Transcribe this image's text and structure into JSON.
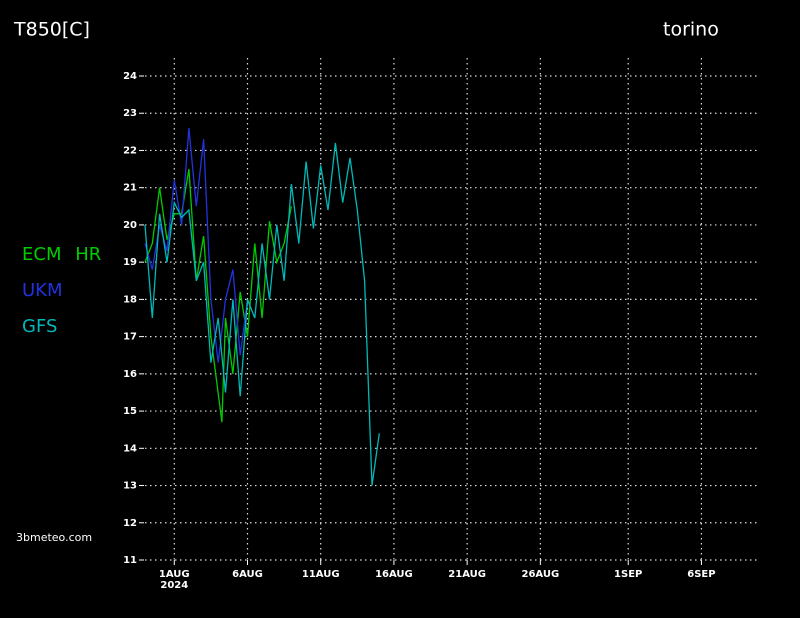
{
  "chart_data": {
    "type": "line",
    "title": "T850[C]",
    "location": "torino",
    "source": "3bmeteo.com",
    "xlim": [
      "2024-07-30T00:00",
      "2024-09-10T00:00"
    ],
    "xticks": [
      {
        "value": "2024-08-01T00:00",
        "label": "1AUG"
      },
      {
        "value": "2024-08-06T00:00",
        "label": "6AUG"
      },
      {
        "value": "2024-08-11T00:00",
        "label": "11AUG"
      },
      {
        "value": "2024-08-16T00:00",
        "label": "16AUG"
      },
      {
        "value": "2024-08-21T00:00",
        "label": "21AUG"
      },
      {
        "value": "2024-08-26T00:00",
        "label": "26AUG"
      },
      {
        "value": "2024-09-01T00:00",
        "label": "1SEP"
      },
      {
        "value": "2024-09-06T00:00",
        "label": "6SEP"
      }
    ],
    "x_year": "2024",
    "ylim": [
      11,
      24
    ],
    "yticks": [
      11,
      12,
      13,
      14,
      15,
      16,
      17,
      18,
      19,
      20,
      21,
      22,
      23,
      24
    ],
    "grid": true,
    "series": [
      {
        "name": "ECM HR",
        "color": "#00cc00",
        "x": [
          "2024-07-30T00:00",
          "2024-07-30T12:00",
          "2024-07-31T00:00",
          "2024-07-31T12:00",
          "2024-08-01T00:00",
          "2024-08-01T12:00",
          "2024-08-02T00:00",
          "2024-08-02T12:00",
          "2024-08-03T00:00",
          "2024-08-03T12:00",
          "2024-08-04T06:00",
          "2024-08-04T12:00",
          "2024-08-05T00:00",
          "2024-08-05T12:00",
          "2024-08-06T00:00",
          "2024-08-06T12:00",
          "2024-08-07T00:00",
          "2024-08-07T12:00",
          "2024-08-08T00:00",
          "2024-08-08T12:00",
          "2024-08-09T00:00"
        ],
        "values": [
          19.0,
          19.5,
          21.0,
          19.6,
          20.3,
          20.3,
          21.5,
          18.5,
          19.7,
          17.0,
          14.7,
          17.5,
          16.0,
          18.2,
          17.0,
          19.5,
          17.5,
          20.1,
          19.0,
          19.5,
          20.5
        ]
      },
      {
        "name": "UKM",
        "color": "#2233dd",
        "x": [
          "2024-07-30T00:00",
          "2024-07-30T12:00",
          "2024-07-31T00:00",
          "2024-07-31T12:00",
          "2024-08-01T00:00",
          "2024-08-01T12:00",
          "2024-08-02T00:00",
          "2024-08-02T12:00",
          "2024-08-03T00:00",
          "2024-08-03T12:00",
          "2024-08-04T00:00",
          "2024-08-04T12:00",
          "2024-08-05T00:00",
          "2024-08-05T12:00",
          "2024-08-06T00:00"
        ],
        "values": [
          19.5,
          18.8,
          20.0,
          19.3,
          21.2,
          20.0,
          22.6,
          20.5,
          22.3,
          18.0,
          16.3,
          18.0,
          18.8,
          16.5,
          18.0
        ]
      },
      {
        "name": "GFS",
        "color": "#00b8b8",
        "x": [
          "2024-07-30T00:00",
          "2024-07-30T12:00",
          "2024-07-31T00:00",
          "2024-07-31T12:00",
          "2024-08-01T00:00",
          "2024-08-01T12:00",
          "2024-08-02T00:00",
          "2024-08-02T12:00",
          "2024-08-03T00:00",
          "2024-08-03T12:00",
          "2024-08-04T00:00",
          "2024-08-04T12:00",
          "2024-08-05T00:00",
          "2024-08-05T12:00",
          "2024-08-06T00:00",
          "2024-08-06T12:00",
          "2024-08-07T00:00",
          "2024-08-07T12:00",
          "2024-08-08T00:00",
          "2024-08-08T12:00",
          "2024-08-09T00:00",
          "2024-08-09T12:00",
          "2024-08-10T00:00",
          "2024-08-10T12:00",
          "2024-08-11T00:00",
          "2024-08-11T12:00",
          "2024-08-12T00:00",
          "2024-08-12T12:00",
          "2024-08-13T00:00",
          "2024-08-13T12:00",
          "2024-08-14T00:00",
          "2024-08-14T12:00",
          "2024-08-15T00:00"
        ],
        "values": [
          20.0,
          17.5,
          20.3,
          19.0,
          20.6,
          20.2,
          20.4,
          18.5,
          19.0,
          16.3,
          17.5,
          15.5,
          18.0,
          15.4,
          18.0,
          17.5,
          19.5,
          18.0,
          20.0,
          18.5,
          21.1,
          19.5,
          21.7,
          19.9,
          21.6,
          20.4,
          22.2,
          20.6,
          21.8,
          20.4,
          18.5,
          13.0,
          14.4
        ]
      }
    ]
  }
}
